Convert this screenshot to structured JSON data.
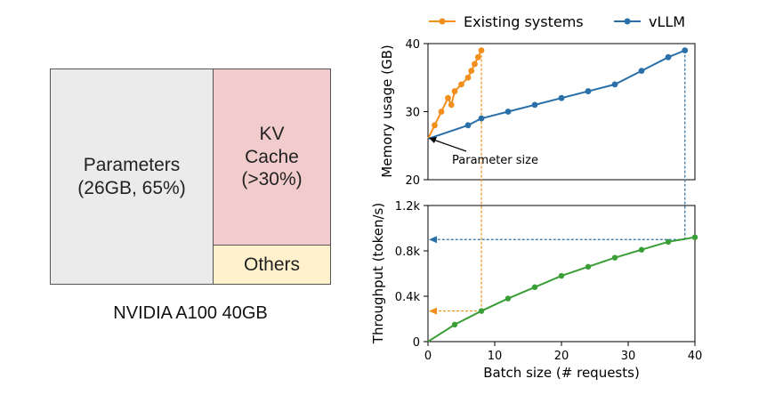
{
  "memory_layout": {
    "caption": "NVIDIA A100 40GB",
    "blocks": [
      {
        "key": "parameters",
        "label": "Parameters\n(26GB, 65%)",
        "color": "#ebebeb"
      },
      {
        "key": "kv_cache",
        "label": "KV\nCache\n(>30%)",
        "color": "#f2cccc"
      },
      {
        "key": "others",
        "label": "Others",
        "color": "#fef1cc"
      }
    ]
  },
  "chart_data": [
    {
      "type": "line",
      "ylabel": "Memory usage (GB)",
      "ylim": [
        20,
        40
      ],
      "xlim": [
        0,
        40
      ],
      "yticks": [
        20,
        30,
        40
      ],
      "grid": false,
      "legend": "top, above plot",
      "annotation": "Parameter size",
      "series": [
        {
          "name": "Existing systems",
          "color": "#f28e1c",
          "x": [
            0,
            1,
            2,
            3,
            3.5,
            4,
            5,
            6,
            6.5,
            7,
            7.5,
            8
          ],
          "y": [
            26,
            28,
            30,
            32,
            31,
            33,
            34,
            35,
            36,
            37,
            38,
            39
          ]
        },
        {
          "name": "vLLM",
          "color": "#2a6fa8",
          "x": [
            0,
            6,
            8,
            12,
            16,
            20,
            24,
            28,
            32,
            36,
            38.5
          ],
          "y": [
            26,
            28,
            29,
            30,
            31,
            32,
            33,
            34,
            36,
            38,
            39
          ]
        }
      ]
    },
    {
      "type": "line",
      "xlabel": "Batch size (# requests)",
      "ylabel": "Throughput (token/s)",
      "xlim": [
        0,
        40
      ],
      "ylim": [
        0,
        1200
      ],
      "xticks": [
        "0",
        "10",
        "20",
        "30",
        "40"
      ],
      "yticks": [
        "0",
        "0.4k",
        "0.8k",
        "1.2k"
      ],
      "grid": false,
      "series": [
        {
          "name": "",
          "color": "#3a9e36",
          "x": [
            0,
            4,
            8,
            12,
            16,
            20,
            24,
            28,
            32,
            36,
            40
          ],
          "y": [
            0,
            150,
            270,
            380,
            480,
            580,
            660,
            740,
            810,
            880,
            920
          ]
        }
      ],
      "markers": [
        {
          "color": "#f28e1c",
          "x": 8,
          "y": 270
        },
        {
          "color": "#2a6fa8",
          "x": 38.5,
          "y": 900
        }
      ]
    }
  ]
}
